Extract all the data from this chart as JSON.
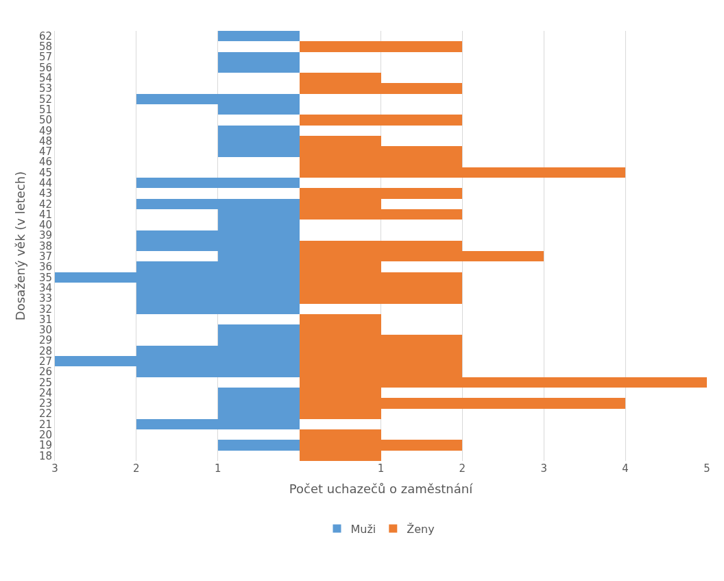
{
  "chart_data": {
    "type": "bar",
    "orientation": "horizontal",
    "xlabel": "Počet uchazečů o zaměstnání",
    "ylabel": "Dosažený věk (v letech)",
    "categories": [
      "62",
      "58",
      "57",
      "56",
      "54",
      "53",
      "52",
      "51",
      "50",
      "49",
      "48",
      "47",
      "46",
      "45",
      "44",
      "43",
      "42",
      "41",
      "40",
      "39",
      "38",
      "37",
      "36",
      "35",
      "34",
      "33",
      "32",
      "31",
      "30",
      "29",
      "28",
      "27",
      "26",
      "25",
      "24",
      "23",
      "22",
      "21",
      "20",
      "19",
      "18"
    ],
    "series": [
      {
        "name": "Muži",
        "color": "#5b9bd5",
        "values": [
          -1,
          0,
          -1,
          -1,
          0,
          0,
          -2,
          -1,
          0,
          -1,
          -1,
          -1,
          0,
          0,
          -2,
          0,
          -2,
          -1,
          -1,
          -2,
          -2,
          -1,
          -2,
          -3,
          -2,
          -2,
          -2,
          0,
          -1,
          -1,
          -2,
          -3,
          -2,
          0,
          -1,
          -1,
          -1,
          -2,
          0,
          -1,
          0
        ]
      },
      {
        "name": "Ženy",
        "color": "#ed7d31",
        "values": [
          0,
          2,
          0,
          0,
          1,
          2,
          0,
          0,
          2,
          0,
          1,
          2,
          2,
          4,
          0,
          2,
          1,
          2,
          0,
          0,
          2,
          3,
          1,
          2,
          2,
          2,
          0,
          1,
          1,
          2,
          2,
          2,
          2,
          5,
          1,
          4,
          1,
          0,
          1,
          2,
          1
        ]
      }
    ],
    "xlim": [
      -3,
      5
    ],
    "xticks": [
      {
        "value": -3,
        "label": "3"
      },
      {
        "value": -2,
        "label": "2"
      },
      {
        "value": -1,
        "label": "1"
      },
      1,
      2,
      3,
      4,
      5
    ],
    "grid": "x",
    "legend": "bottom"
  }
}
